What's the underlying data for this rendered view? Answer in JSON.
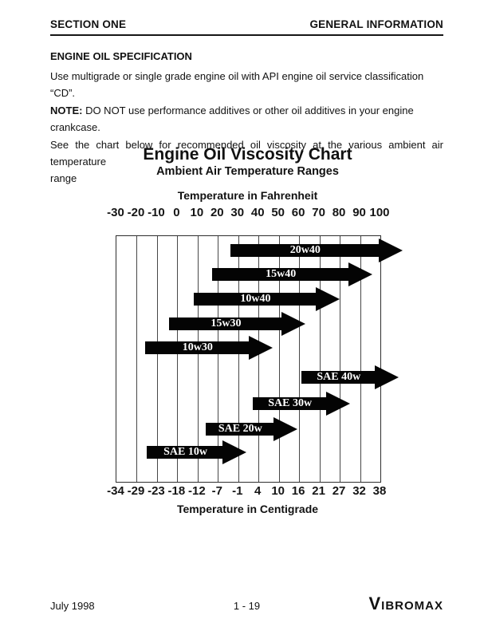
{
  "header": {
    "left": "SECTION ONE",
    "right": "GENERAL INFORMATION"
  },
  "spec": {
    "heading": "ENGINE OIL SPECIFICATION",
    "line1": "Use multigrade or single grade engine oil with API engine oil service classification “CD”.",
    "note_label": "NOTE:",
    "note_text": " DO NOT use performance additives or other oil additives in your engine crankcase.",
    "see_chart_line": "See the chart below for recommended oil viscosity at the various ambient air temperature",
    "see_chart_tail": "range"
  },
  "chart_data": {
    "type": "bar",
    "title": "Engine Oil Viscosity Chart",
    "subtitle": "Ambient Air Temperature Ranges",
    "x_top_label": "Temperature in Fahrenheit",
    "x_bottom_label": "Temperature in Centigrade",
    "x_range_f": [
      -30,
      100
    ],
    "grid": true,
    "legend": false,
    "ticks": [
      {
        "f": -30,
        "c": -34
      },
      {
        "f": -20,
        "c": -29
      },
      {
        "f": -10,
        "c": -23
      },
      {
        "f": 0,
        "c": -18
      },
      {
        "f": 10,
        "c": -12
      },
      {
        "f": 20,
        "c": -7
      },
      {
        "f": 30,
        "c": -1
      },
      {
        "f": 40,
        "c": 4
      },
      {
        "f": 50,
        "c": 10
      },
      {
        "f": 60,
        "c": 16
      },
      {
        "f": 70,
        "c": 21
      },
      {
        "f": 80,
        "c": 27
      },
      {
        "f": 90,
        "c": 32
      },
      {
        "f": 100,
        "c": 38
      }
    ],
    "series": [
      {
        "name": "20w40",
        "start_f": 26,
        "end_f": 111
      },
      {
        "name": "15w40",
        "start_f": 17,
        "end_f": 96
      },
      {
        "name": "10w40",
        "start_f": 8,
        "end_f": 80
      },
      {
        "name": "15w30",
        "start_f": -4,
        "end_f": 63
      },
      {
        "name": "10w30",
        "start_f": -16,
        "end_f": 47
      },
      {
        "name": "SAE 40w",
        "start_f": 61,
        "end_f": 109
      },
      {
        "name": "SAE 30w",
        "start_f": 37,
        "end_f": 85
      },
      {
        "name": "SAE 20w",
        "start_f": 14,
        "end_f": 59
      },
      {
        "name": "SAE 10w",
        "start_f": -15,
        "end_f": 34
      }
    ]
  },
  "footer": {
    "date": "July 1998",
    "page": "1 - 19",
    "logo": "VIBROMAX"
  }
}
